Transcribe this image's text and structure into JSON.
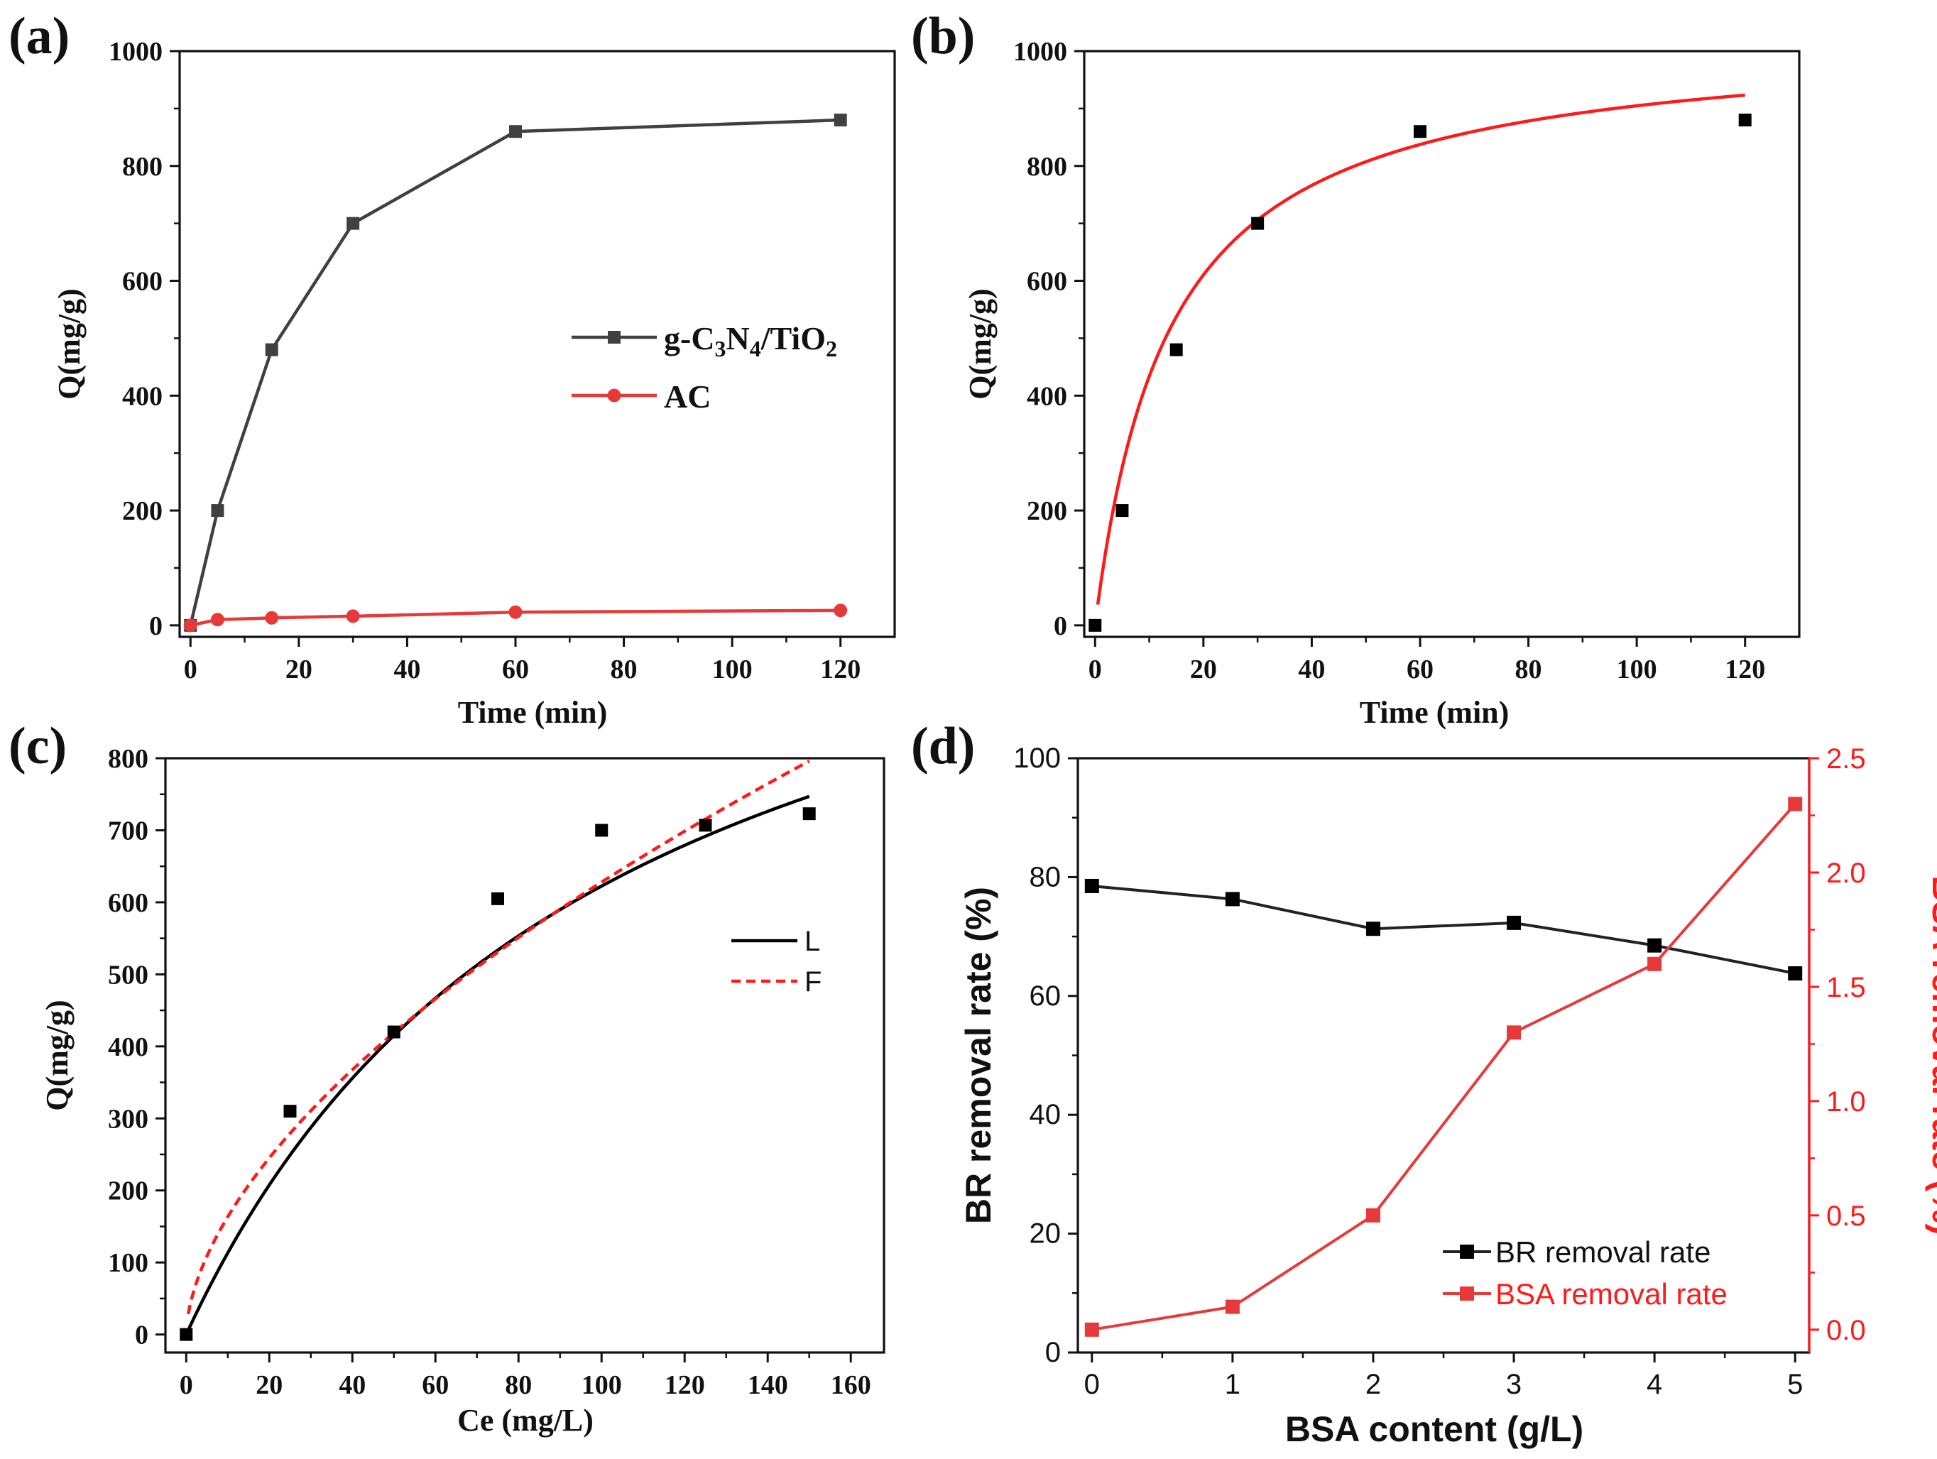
{
  "colors": {
    "dark": "#404040",
    "red": "#e63a3a",
    "fit_red": "#ff1a1a",
    "black": "#000000",
    "axis": "#111111"
  },
  "chart_data": [
    {
      "id": "a",
      "panel_label": "(a)",
      "type": "line",
      "xlabel": "Time (min)",
      "ylabel": "Q(mg/g)",
      "xlim": [
        -2,
        130
      ],
      "ylim": [
        -20,
        1000
      ],
      "xticks": [
        "0",
        "20",
        "40",
        "60",
        "80",
        "100",
        "120"
      ],
      "yticks": [
        "0",
        "200",
        "400",
        "600",
        "800",
        "1000"
      ],
      "legend": {
        "position": "right-middle",
        "entries": [
          {
            "label": "g-C3N4/TiO2",
            "base": "g-C",
            "parts": [
              [
                "3",
                "sub"
              ],
              [
                "N",
                ""
              ],
              [
                "4",
                "sub"
              ],
              [
                "/TiO",
                ""
              ],
              [
                "2",
                "sub"
              ]
            ]
          },
          {
            "label": "AC"
          }
        ]
      },
      "series": [
        {
          "name": "g-C3N4/TiO2",
          "marker": "square",
          "x": [
            0,
            5,
            15,
            30,
            60,
            120
          ],
          "y": [
            0,
            200,
            480,
            700,
            860,
            880
          ]
        },
        {
          "name": "AC",
          "marker": "circle",
          "x": [
            0,
            5,
            15,
            30,
            60,
            120
          ],
          "y": [
            0,
            10,
            13,
            16,
            23,
            26
          ]
        }
      ]
    },
    {
      "id": "b",
      "panel_label": "(b)",
      "type": "scatter",
      "xlabel": "Time (min)",
      "ylabel": "Q(mg/g)",
      "xlim": [
        -2,
        130
      ],
      "ylim": [
        -20,
        1000
      ],
      "xticks": [
        "0",
        "20",
        "40",
        "60",
        "80",
        "100",
        "120"
      ],
      "yticks": [
        "0",
        "200",
        "400",
        "600",
        "800",
        "1000"
      ],
      "series": [
        {
          "name": "data",
          "marker": "square",
          "x": [
            0,
            5,
            15,
            30,
            60,
            120
          ],
          "y": [
            0,
            200,
            480,
            700,
            860,
            880
          ]
        }
      ],
      "fit": {
        "name": "fit",
        "style": "solid-red",
        "qe": 1029,
        "k": 7.08e-05,
        "x_range": [
          0.5,
          120
        ]
      }
    },
    {
      "id": "c",
      "panel_label": "(c)",
      "type": "scatter",
      "xlabel": "Ce (mg/L)",
      "ylabel": "Q(mg/g)",
      "xlim": [
        -5,
        168
      ],
      "ylim": [
        -25,
        800
      ],
      "xticks": [
        "0",
        "20",
        "40",
        "60",
        "80",
        "100",
        "120",
        "140",
        "160"
      ],
      "yticks": [
        "0",
        "100",
        "200",
        "300",
        "400",
        "500",
        "600",
        "700",
        "800"
      ],
      "series": [
        {
          "name": "data",
          "marker": "square",
          "x": [
            0,
            25,
            50,
            75,
            100,
            125,
            150
          ],
          "y": [
            0,
            310,
            420,
            605,
            700,
            707,
            723
          ]
        }
      ],
      "fits": [
        {
          "name": "L",
          "style": "solid-black",
          "qm": 1245,
          "kl": 0.01,
          "x_range": [
            0,
            150
          ]
        },
        {
          "name": "F",
          "style": "dashed-red",
          "kf": 42.5,
          "n": 1.71,
          "x_range": [
            0.5,
            150
          ]
        }
      ],
      "legend": {
        "position": "right-middle",
        "entries": [
          {
            "label": "L"
          },
          {
            "label": "F"
          }
        ]
      }
    },
    {
      "id": "d",
      "panel_label": "(d)",
      "type": "line",
      "xlabel": "BSA content (g/L)",
      "ylabel": "BR removal rate (%)",
      "ylabel_right": "BSA removal rate (%)",
      "xlim": [
        -0.1,
        5.1
      ],
      "ylim": [
        0,
        100
      ],
      "ylim_right": [
        -0.1,
        2.5
      ],
      "xticks": [
        "0",
        "1",
        "2",
        "3",
        "4",
        "5"
      ],
      "yticks": [
        "0",
        "20",
        "40",
        "60",
        "80",
        "100"
      ],
      "yticks_right": [
        "0.0",
        "0.5",
        "1.0",
        "1.5",
        "2.0",
        "2.5"
      ],
      "legend": {
        "position": "bottom-right",
        "entries": [
          {
            "label": "BR removal rate"
          },
          {
            "label": "BSA removal rate"
          }
        ]
      },
      "series": [
        {
          "name": "BR removal rate",
          "axis": "left",
          "marker": "square",
          "x": [
            0,
            1,
            2,
            3,
            4,
            5
          ],
          "y": [
            78.5,
            76.3,
            71.3,
            72.3,
            68.5,
            63.8
          ]
        },
        {
          "name": "BSA removal rate",
          "axis": "right",
          "marker": "square",
          "x": [
            0,
            1,
            2,
            3,
            4,
            5
          ],
          "y": [
            0.0,
            0.1,
            0.5,
            1.3,
            1.6,
            2.3
          ]
        }
      ]
    }
  ]
}
